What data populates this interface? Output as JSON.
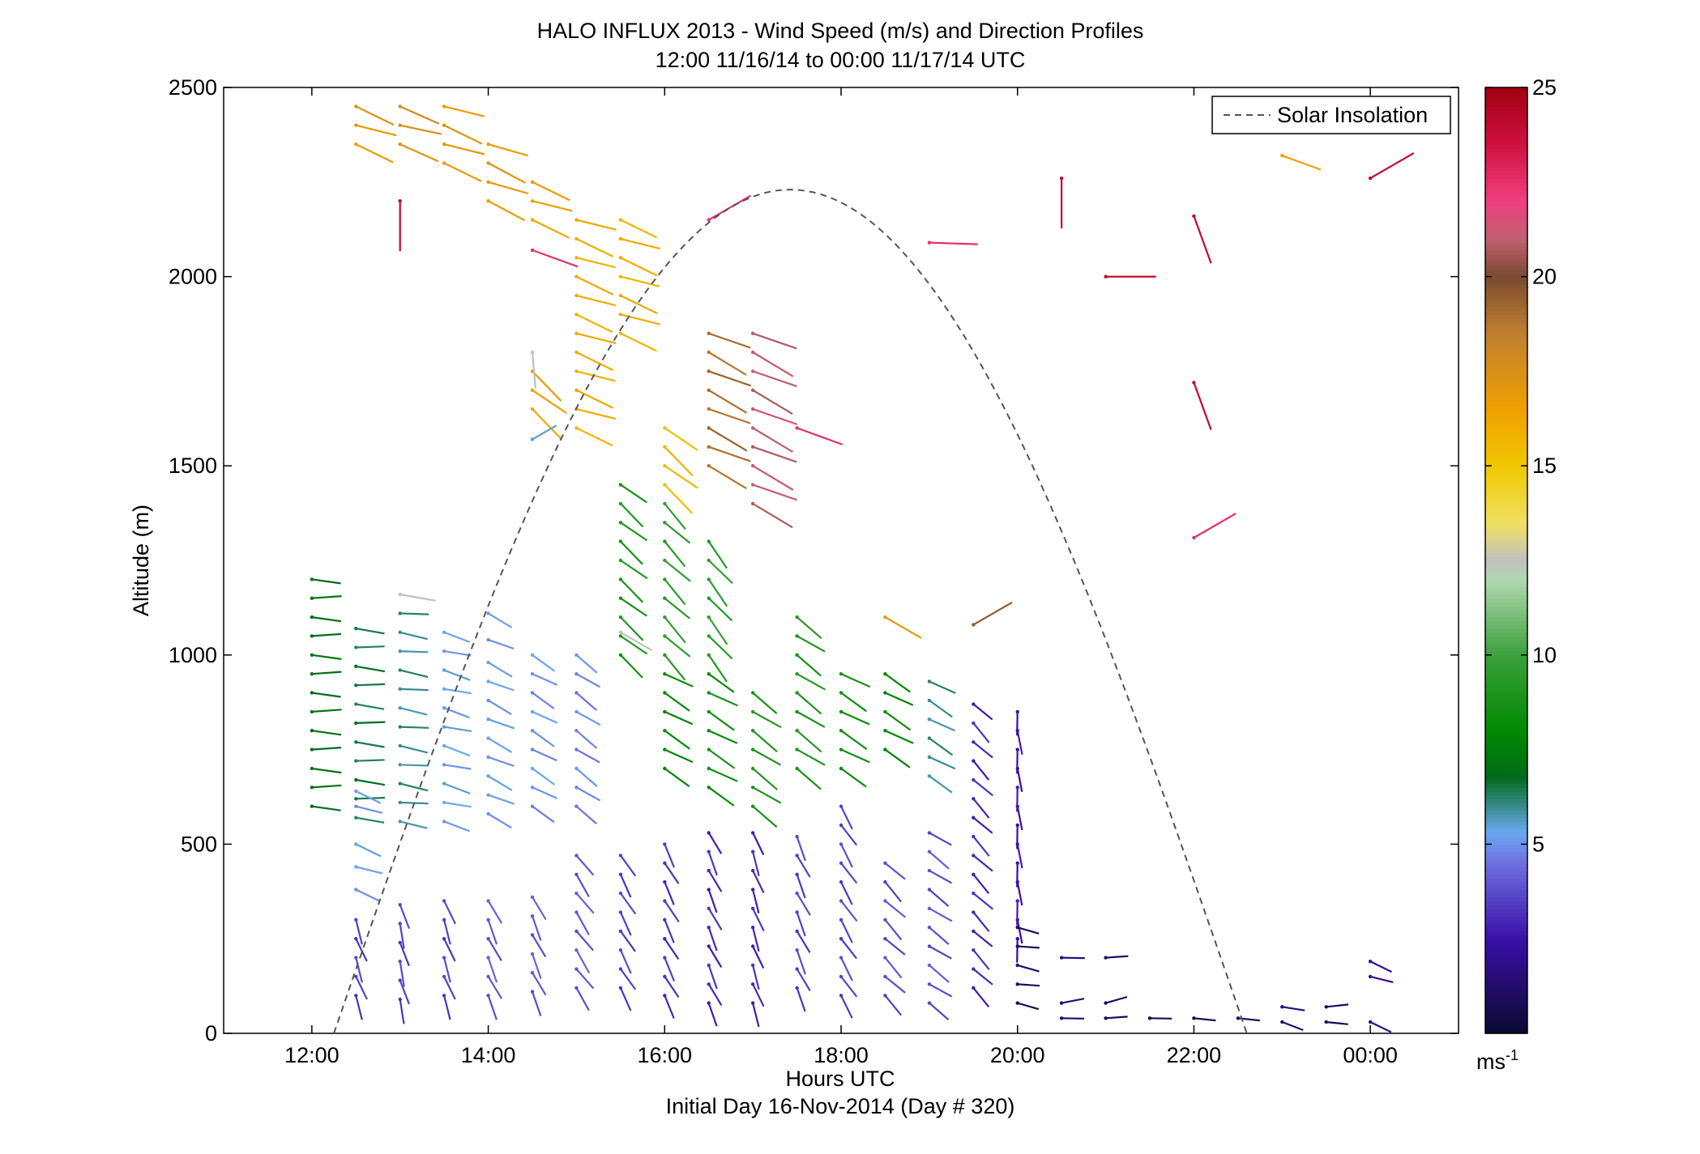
{
  "chart_data": {
    "type": "wind-barb-profile",
    "title": "HALO INFLUX 2013 - Wind Speed (m/s) and Direction Profiles",
    "subtitle": "12:00 11/16/14 to 00:00 11/17/14  UTC",
    "xlabel": "Hours UTC",
    "xlabel2": "Initial Day 16-Nov-2014 (Day # 320)",
    "ylabel": "Altitude (m)",
    "xlim_hours": [
      11,
      25
    ],
    "ylim": [
      0,
      2500
    ],
    "x_ticks": [
      {
        "hour": 12,
        "label": "12:00"
      },
      {
        "hour": 14,
        "label": "14:00"
      },
      {
        "hour": 16,
        "label": "16:00"
      },
      {
        "hour": 18,
        "label": "18:00"
      },
      {
        "hour": 20,
        "label": "20:00"
      },
      {
        "hour": 22,
        "label": "22:00"
      },
      {
        "hour": 24,
        "label": "00:00"
      }
    ],
    "y_ticks": [
      0,
      500,
      1000,
      1500,
      2000,
      2500
    ],
    "colorbar": {
      "range": [
        0,
        25
      ],
      "ticks": [
        5,
        10,
        15,
        20,
        25
      ],
      "unit_base": "ms",
      "unit_exp": "-1",
      "stops": [
        {
          "v": 0,
          "c": "#0a0a30"
        },
        {
          "v": 2.5,
          "c": "#3a10a8"
        },
        {
          "v": 4.5,
          "c": "#6f6fe0"
        },
        {
          "v": 5.3,
          "c": "#6aa8f0"
        },
        {
          "v": 6.0,
          "c": "#3a8c8c"
        },
        {
          "v": 6.8,
          "c": "#006a1a"
        },
        {
          "v": 8,
          "c": "#008a00"
        },
        {
          "v": 10,
          "c": "#3ca03c"
        },
        {
          "v": 12,
          "c": "#b0d8b0"
        },
        {
          "v": 12.5,
          "c": "#c0c0c0"
        },
        {
          "v": 13.5,
          "c": "#f0e060"
        },
        {
          "v": 15,
          "c": "#f0c800"
        },
        {
          "v": 16.5,
          "c": "#f0a000"
        },
        {
          "v": 18.5,
          "c": "#c08030"
        },
        {
          "v": 20,
          "c": "#7a4a30"
        },
        {
          "v": 21,
          "c": "#c06070"
        },
        {
          "v": 22,
          "c": "#f04080"
        },
        {
          "v": 23.5,
          "c": "#d01040"
        },
        {
          "v": 25,
          "c": "#a00010"
        }
      ]
    },
    "legend": {
      "label": "Solar Insolation",
      "placement": "top-right",
      "style": "dashed",
      "color": "#555555"
    },
    "solar_insolation": {
      "start_hour": 12.25,
      "peak_hour": 17.45,
      "end_hour": 22.6,
      "peak_altitude": 2230
    },
    "wind_series": [
      {
        "hour": 12,
        "speed": 7.0,
        "alts": [
          600,
          650,
          700,
          750,
          800,
          850,
          900,
          950,
          1000,
          1050,
          1100,
          1150,
          1200
        ],
        "dir": 268
      },
      {
        "hour": 12.5,
        "speed": 6.5,
        "alts": [
          570,
          620,
          670,
          720,
          770,
          820,
          870,
          920,
          970,
          1020,
          1070
        ],
        "dir": 266
      },
      {
        "hour": 12.5,
        "speed": 5.2,
        "alts": [
          380,
          440,
          500,
          600,
          640
        ],
        "dir": 250
      },
      {
        "hour": 12.5,
        "speed": 3.5,
        "alts": [
          100,
          150,
          200,
          250,
          300
        ],
        "dir": 200
      },
      {
        "hour": 13,
        "speed": 6.0,
        "alts": [
          560,
          610,
          660,
          710,
          760,
          810,
          860,
          910,
          960,
          1010,
          1060,
          1110
        ],
        "dir": 262
      },
      {
        "hour": 13,
        "speed": 3.5,
        "alts": [
          90,
          140,
          190,
          240,
          290,
          340
        ],
        "dir": 195
      },
      {
        "hour": 13.5,
        "speed": 5.3,
        "alts": [
          560,
          610,
          660,
          710,
          760,
          810,
          860,
          910,
          960,
          1010,
          1060
        ],
        "dir": 255
      },
      {
        "hour": 13.5,
        "speed": 3.5,
        "alts": [
          100,
          150,
          200,
          250,
          300,
          350
        ],
        "dir": 200
      },
      {
        "hour": 14,
        "speed": 5.2,
        "alts": [
          580,
          630,
          680,
          730,
          780,
          830,
          880,
          930,
          980,
          1040,
          1110
        ],
        "dir": 245
      },
      {
        "hour": 14,
        "speed": 4.0,
        "alts": [
          100,
          150,
          200,
          250,
          300,
          350
        ],
        "dir": 205
      },
      {
        "hour": 14.5,
        "speed": 5.0,
        "alts": [
          600,
          650,
          700,
          750,
          800,
          850,
          900,
          950,
          1000
        ],
        "dir": 240
      },
      {
        "hour": 14.5,
        "speed": 4.0,
        "alts": [
          110,
          160,
          210,
          260,
          310,
          360
        ],
        "dir": 205
      },
      {
        "hour": 15,
        "speed": 4.8,
        "alts": [
          600,
          650,
          700,
          750,
          800,
          850,
          900,
          950,
          1000
        ],
        "dir": 235
      },
      {
        "hour": 15,
        "speed": 4.0,
        "alts": [
          120,
          170,
          220,
          270,
          320,
          370,
          420,
          470
        ],
        "dir": 215
      },
      {
        "hour": 15,
        "speed": 16.0,
        "alts": [
          1600,
          1650,
          1700,
          1750,
          1800,
          1850,
          1900,
          1950,
          2000,
          2050,
          2100,
          2150
        ],
        "dir": 250
      },
      {
        "hour": 15.5,
        "speed": 3.5,
        "alts": [
          120,
          170,
          220,
          270,
          320,
          370,
          420,
          470
        ],
        "dir": 210
      },
      {
        "hour": 15.5,
        "speed": 9.0,
        "alts": [
          1000,
          1050,
          1100,
          1150,
          1200,
          1250,
          1300,
          1350,
          1400,
          1450
        ],
        "dir": 230
      },
      {
        "hour": 15.5,
        "speed": 16.0,
        "alts": [
          1850,
          1900,
          1950,
          2000,
          2050,
          2100,
          2150
        ],
        "dir": 250
      },
      {
        "hour": 16,
        "speed": 3.2,
        "alts": [
          100,
          150,
          200,
          250,
          300,
          350,
          400,
          450,
          500
        ],
        "dir": 208
      },
      {
        "hour": 16,
        "speed": 8.0,
        "alts": [
          700,
          750,
          800,
          850,
          900,
          950
        ],
        "dir": 240
      },
      {
        "hour": 16,
        "speed": 9.5,
        "alts": [
          1000,
          1050,
          1100,
          1150,
          1200,
          1250,
          1300,
          1350,
          1400
        ],
        "dir": 225
      },
      {
        "hour": 16,
        "speed": 15.5,
        "alts": [
          1450,
          1500,
          1550,
          1600
        ],
        "dir": 230
      },
      {
        "hour": 16.5,
        "speed": 3.0,
        "alts": [
          80,
          130,
          180,
          230,
          280,
          330,
          380,
          430,
          480,
          530
        ],
        "dir": 205
      },
      {
        "hour": 16.5,
        "speed": 8.5,
        "alts": [
          650,
          700,
          750,
          800,
          850,
          900,
          950
        ],
        "dir": 240
      },
      {
        "hour": 16.5,
        "speed": 9.5,
        "alts": [
          1000,
          1050,
          1100,
          1150,
          1200,
          1250,
          1300
        ],
        "dir": 220
      },
      {
        "hour": 16.5,
        "speed": 19.0,
        "alts": [
          1500,
          1550,
          1600,
          1650,
          1700,
          1750,
          1800,
          1850
        ],
        "dir": 245
      },
      {
        "hour": 17,
        "speed": 3.0,
        "alts": [
          80,
          130,
          180,
          230,
          280,
          330,
          380,
          430,
          480,
          530
        ],
        "dir": 200
      },
      {
        "hour": 17,
        "speed": 9.0,
        "alts": [
          600,
          650,
          700,
          750,
          800,
          850,
          900
        ],
        "dir": 235
      },
      {
        "hour": 17,
        "speed": 21.0,
        "alts": [
          1400,
          1450,
          1500,
          1550,
          1600,
          1650,
          1700,
          1750,
          1800,
          1850
        ],
        "dir": 245
      },
      {
        "hour": 17.5,
        "speed": 3.5,
        "alts": [
          120,
          170,
          220,
          270,
          320,
          370,
          420,
          470,
          520
        ],
        "dir": 205
      },
      {
        "hour": 17.5,
        "speed": 9.0,
        "alts": [
          700,
          750,
          800,
          850,
          900,
          950,
          1000,
          1050,
          1100
        ],
        "dir": 235
      },
      {
        "hour": 18,
        "speed": 3.6,
        "alts": [
          100,
          150,
          200,
          250,
          300,
          350,
          400,
          450,
          500,
          550,
          600
        ],
        "dir": 212
      },
      {
        "hour": 18,
        "speed": 8.5,
        "alts": [
          700,
          750,
          800,
          850,
          900,
          950
        ],
        "dir": 240
      },
      {
        "hour": 18.5,
        "speed": 3.8,
        "alts": [
          100,
          150,
          200,
          250,
          300,
          350,
          400,
          450
        ],
        "dir": 225
      },
      {
        "hour": 18.5,
        "speed": 8.0,
        "alts": [
          750,
          800,
          850,
          900,
          950
        ],
        "dir": 240
      },
      {
        "hour": 19,
        "speed": 3.8,
        "alts": [
          80,
          130,
          180,
          230,
          280,
          330,
          380,
          430,
          480,
          530
        ],
        "dir": 235
      },
      {
        "hour": 19,
        "speed": 6.0,
        "alts": [
          680,
          730,
          780,
          830,
          880,
          930
        ],
        "dir": 240
      },
      {
        "hour": 19.5,
        "speed": 3.0,
        "alts": [
          120,
          170,
          220,
          270,
          320,
          370,
          420,
          470,
          520,
          570,
          620,
          670,
          720,
          770,
          820,
          870
        ],
        "dir": 225
      },
      {
        "hour": 20,
        "speed": 2.5,
        "alts": [
          250,
          300,
          350,
          400,
          450,
          500,
          550,
          600,
          650,
          700,
          750,
          800,
          850
        ],
        "dir": 185
      },
      {
        "hour": 20,
        "speed": 1.0,
        "alts": [
          80,
          130,
          180,
          230,
          280
        ],
        "dir": 260
      },
      {
        "hour": 20.5,
        "speed": 1.5,
        "alts": [
          40,
          80,
          200
        ],
        "dir": 275
      },
      {
        "hour": 21,
        "speed": 1.0,
        "alts": [
          40,
          80,
          200
        ],
        "dir": 280
      },
      {
        "hour": 21.5,
        "speed": 1.0,
        "alts": [
          40
        ],
        "dir": 275
      },
      {
        "hour": 22,
        "speed": 1.0,
        "alts": [
          40
        ],
        "dir": 270
      },
      {
        "hour": 22.5,
        "speed": 1.0,
        "alts": [
          40
        ],
        "dir": 270
      },
      {
        "hour": 23,
        "speed": 1.5,
        "alts": [
          30,
          70
        ],
        "dir": 255
      },
      {
        "hour": 23.5,
        "speed": 1.0,
        "alts": [
          30,
          70
        ],
        "dir": 270
      },
      {
        "hour": 24,
        "speed": 2.0,
        "alts": [
          30,
          150,
          190
        ],
        "dir": 250
      },
      {
        "hour": 12.5,
        "speed": 17.0,
        "alts": [
          2350,
          2400,
          2450
        ],
        "dir": 250
      },
      {
        "hour": 13,
        "speed": 17.5,
        "alts": [
          2350,
          2400,
          2450
        ],
        "dir": 252
      },
      {
        "hour": 13.5,
        "speed": 17.0,
        "alts": [
          2300,
          2350,
          2400,
          2450
        ],
        "dir": 250
      },
      {
        "hour": 14,
        "speed": 17.0,
        "alts": [
          2200,
          2250,
          2300,
          2350
        ],
        "dir": 248
      },
      {
        "hour": 14.5,
        "speed": 16.5,
        "alts": [
          2150,
          2200,
          2250
        ],
        "dir": 250
      },
      {
        "hour": 14.5,
        "speed": 16.5,
        "alts": [
          1650,
          1700,
          1750
        ],
        "dir": 230
      }
    ],
    "wind_barbs_isolated": [
      {
        "hour": 13,
        "alt": 2200,
        "speed": 24.0,
        "dir": 180
      },
      {
        "hour": 14.5,
        "alt": 2070,
        "speed": 22.5,
        "dir": 250
      },
      {
        "hour": 14.5,
        "alt": 1800,
        "speed": 12.5,
        "dir": 185
      },
      {
        "hour": 14.5,
        "alt": 1570,
        "speed": 5.5,
        "dir": 300
      },
      {
        "hour": 16.5,
        "alt": 2150,
        "speed": 22.5,
        "dir": 300
      },
      {
        "hour": 17.5,
        "alt": 1600,
        "speed": 22.5,
        "dir": 250
      },
      {
        "hour": 19,
        "alt": 2090,
        "speed": 22.5,
        "dir": 268
      },
      {
        "hour": 20.5,
        "alt": 2260,
        "speed": 24.0,
        "dir": 180
      },
      {
        "hour": 21,
        "alt": 2000,
        "speed": 24.0,
        "dir": 270
      },
      {
        "hour": 22,
        "alt": 2160,
        "speed": 24.0,
        "dir": 200
      },
      {
        "hour": 22,
        "alt": 1720,
        "speed": 24.0,
        "dir": 200
      },
      {
        "hour": 22,
        "alt": 1310,
        "speed": 22.5,
        "dir": 300
      },
      {
        "hour": 23,
        "alt": 2320,
        "speed": 16.5,
        "dir": 250
      },
      {
        "hour": 24,
        "alt": 2260,
        "speed": 24.0,
        "dir": 300
      },
      {
        "hour": 18.5,
        "alt": 1100,
        "speed": 17.0,
        "dir": 240
      },
      {
        "hour": 19.5,
        "alt": 1080,
        "speed": 19.5,
        "dir": 300
      },
      {
        "hour": 15.5,
        "alt": 1060,
        "speed": 12.5,
        "dir": 240
      },
      {
        "hour": 13,
        "alt": 1160,
        "speed": 12.5,
        "dir": 260
      }
    ]
  }
}
